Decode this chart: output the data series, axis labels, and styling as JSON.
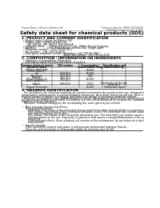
{
  "bg_color": "#ffffff",
  "header_left": "Product Name: Lithium Ion Battery Cell",
  "header_right_line1": "Substance Number: MSDS-LIION-00019",
  "header_right_line2": "Established / Revision: Dec.7.2010",
  "title": "Safety data sheet for chemical products (SDS)",
  "section1_title": "1. PRODUCT AND COMPANY IDENTIFICATION",
  "section1_lines": [
    "  • Product name: Lithium Ion Battery Cell",
    "  • Product code: Cylindrical-type cell",
    "       IHR 18650U, IHR 18650L, IHR 18650A",
    "  • Company name:      Sanyo Electric Co., Ltd., Mobile Energy Company",
    "  • Address:              2001  Kamitakaido, Sumoto-City, Hyogo, Japan",
    "  • Telephone number:   +81-799-26-4111",
    "  • Fax number:   +81-799-26-4129",
    "  • Emergency telephone number (Weekday): +81-799-26-3962",
    "                                                    (Night and holiday): +81-799-26-4109"
  ],
  "section2_title": "2. COMPOSITION / INFORMATION ON INGREDIENTS",
  "section2_line1": "  • Substance or preparation: Preparation",
  "section2_line2": "  • Information about the chemical nature of product:",
  "table_col_names": [
    "Common chemical name /\nBusiness name",
    "CAS number",
    "Concentration /\nConcentration range",
    "Classification and\nhazard labeling"
  ],
  "table_rows": [
    [
      "Lithium cobalt oxide\n(LiMnxCoyNizO2)",
      "-",
      "30-60%",
      "-"
    ],
    [
      "Iron",
      "7439-89-6",
      "10-30%",
      "-"
    ],
    [
      "Aluminium",
      "7429-90-5",
      "2-8%",
      "-"
    ],
    [
      "Graphite\n(Mixed graphite-1)\n(ArtHon graphite-1)",
      "7782-42-5\n7782-42-5",
      "10-20%",
      "-"
    ],
    [
      "Copper",
      "7440-50-8",
      "5-15%",
      "Sensitization of the skin\ngroup No.2"
    ],
    [
      "Organic electrolyte",
      "-",
      "10-20%",
      "Inflammable liquid"
    ]
  ],
  "section3_title": "3. HAZARDS IDENTIFICATION",
  "section3_body": [
    "   For the battery cell, chemical materials are stored in a hermetically sealed metal case, designed to withstand",
    "temperatures and pressures encountered during normal use. As a result, during normal use, there is no",
    "physical danger of ignition or explosion and there is no danger of hazardous materials leakage.",
    "   However, if exposed to a fire, added mechanical shocks, decomposed, when electric shorts may make use,",
    "the gas release cannot be operated. The battery cell case will be breached of fire particles, hazardous",
    "materials may be released.",
    "   Moreover, if heated strongly by the surrounding fire, some gas may be emitted.",
    "",
    "  • Most important hazard and effects:",
    "     Human health effects:",
    "        Inhalation: The release of the electrolyte has an anesthesia action and stimulates in respiratory tract.",
    "        Skin contact: The release of the electrolyte stimulates a skin. The electrolyte skin contact causes a",
    "        sore and stimulation on the skin.",
    "        Eye contact: The release of the electrolyte stimulates eyes. The electrolyte eye contact causes a sore",
    "        and stimulation on the eye. Especially, a substance that causes a strong inflammation of the eyes is",
    "        confirmed.",
    "        Environmental effects: Since a battery cell remains in the environment, do not throw out it into the",
    "        environment.",
    "",
    "  • Specific hazards:",
    "     If the electrolyte contacts with water, it will generate detrimental hydrogen fluoride.",
    "     Since the seal electrolyte is inflammable liquid, do not bring close to fire."
  ],
  "footer_line": true
}
